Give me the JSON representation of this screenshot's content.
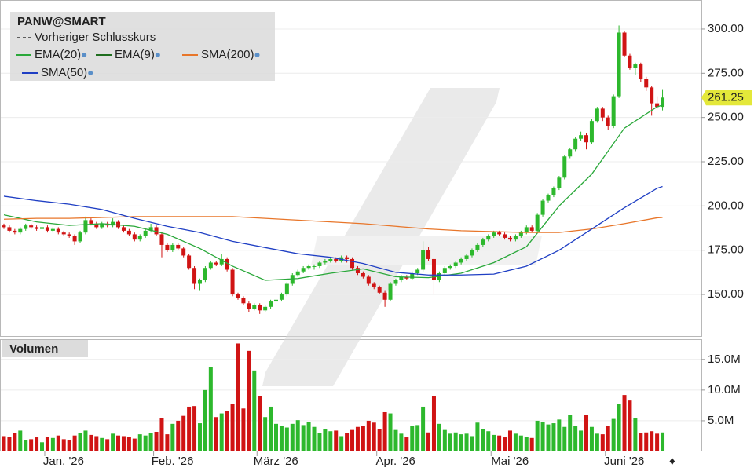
{
  "chart_data": {
    "type": "candlestick",
    "title": "PANW@SMART",
    "previous_close_label": "Vorheriger Schlusskurs",
    "up_color": "#2db82d",
    "down_color": "#d01414",
    "categories": [
      null,
      null,
      null,
      null,
      null,
      null,
      null,
      null,
      "Jan. '26",
      null,
      null,
      null,
      null,
      null,
      null,
      null,
      null,
      null,
      null,
      null,
      null,
      null,
      null,
      null,
      null,
      null,
      null,
      null,
      "Feb. '26",
      null,
      null,
      null,
      null,
      null,
      null,
      null,
      null,
      null,
      null,
      null,
      null,
      null,
      null,
      null,
      null,
      null,
      null,
      "März '26",
      null,
      null,
      null,
      null,
      null,
      null,
      null,
      null,
      null,
      null,
      null,
      null,
      null,
      null,
      null,
      null,
      null,
      null,
      null,
      null,
      null,
      "Apr. '26",
      null,
      null,
      null,
      null,
      null,
      null,
      null,
      null,
      null,
      null,
      null,
      null,
      null,
      null,
      null,
      null,
      null,
      null,
      null,
      null,
      "Mai '26",
      null,
      null,
      null,
      null,
      null,
      null,
      null,
      null,
      null,
      null,
      null,
      null,
      null,
      null,
      null,
      null,
      null,
      null,
      null,
      null,
      "Juni '26",
      null,
      null,
      null,
      null,
      null,
      null,
      null,
      null,
      null,
      null
    ],
    "ohlc": [
      [
        189,
        190,
        187,
        188
      ],
      [
        188,
        189,
        185,
        186
      ],
      [
        186,
        187,
        184,
        185
      ],
      [
        185,
        188,
        184,
        187
      ],
      [
        187,
        190,
        186,
        189
      ],
      [
        189,
        190,
        187,
        188
      ],
      [
        188,
        189,
        186,
        187
      ],
      [
        187,
        189,
        186,
        188
      ],
      [
        188,
        189,
        185,
        186
      ],
      [
        186,
        188,
        185,
        187
      ],
      [
        187,
        188,
        184,
        185
      ],
      [
        185,
        186,
        183,
        184
      ],
      [
        184,
        185,
        182,
        183
      ],
      [
        183,
        184,
        178,
        180
      ],
      [
        180,
        186,
        179,
        185
      ],
      [
        185,
        194,
        184,
        192
      ],
      [
        192,
        193,
        189,
        190
      ],
      [
        190,
        191,
        187,
        188
      ],
      [
        188,
        191,
        187,
        190
      ],
      [
        190,
        191,
        188,
        189
      ],
      [
        189,
        193,
        188,
        191
      ],
      [
        191,
        192,
        187,
        188
      ],
      [
        188,
        189,
        185,
        186
      ],
      [
        186,
        187,
        183,
        184
      ],
      [
        184,
        185,
        180,
        181
      ],
      [
        181,
        184,
        180,
        183
      ],
      [
        183,
        187,
        182,
        186
      ],
      [
        186,
        190,
        185,
        188
      ],
      [
        188,
        189,
        183,
        184
      ],
      [
        184,
        185,
        171,
        178
      ],
      [
        178,
        179,
        174,
        175
      ],
      [
        175,
        179,
        174,
        178
      ],
      [
        178,
        179,
        175,
        176
      ],
      [
        176,
        177,
        171,
        172
      ],
      [
        172,
        173,
        164,
        165
      ],
      [
        165,
        166,
        153,
        156
      ],
      [
        156,
        159,
        152,
        158
      ],
      [
        158,
        166,
        157,
        165
      ],
      [
        165,
        169,
        164,
        168
      ],
      [
        168,
        169,
        166,
        167
      ],
      [
        167,
        173,
        166,
        170
      ],
      [
        170,
        171,
        163,
        164
      ],
      [
        164,
        165,
        149,
        150
      ],
      [
        150,
        151,
        147,
        148
      ],
      [
        148,
        149,
        144,
        145
      ],
      [
        145,
        146,
        140,
        142
      ],
      [
        142,
        145,
        141,
        144
      ],
      [
        144,
        145,
        139,
        141
      ],
      [
        141,
        144,
        140,
        143
      ],
      [
        143,
        147,
        142,
        146
      ],
      [
        146,
        148,
        145,
        147
      ],
      [
        147,
        151,
        146,
        150
      ],
      [
        150,
        157,
        149,
        156
      ],
      [
        156,
        162,
        155,
        161
      ],
      [
        161,
        164,
        160,
        163
      ],
      [
        163,
        166,
        162,
        165
      ],
      [
        165,
        167,
        164,
        166
      ],
      [
        166,
        167,
        164,
        166
      ],
      [
        166,
        169,
        165,
        168
      ],
      [
        168,
        170,
        167,
        169
      ],
      [
        169,
        171,
        168,
        170
      ],
      [
        170,
        171,
        168,
        169
      ],
      [
        169,
        172,
        168,
        171
      ],
      [
        171,
        172,
        168,
        170
      ],
      [
        170,
        171,
        164,
        165
      ],
      [
        165,
        166,
        161,
        162
      ],
      [
        162,
        163,
        159,
        160
      ],
      [
        160,
        161,
        155,
        156
      ],
      [
        156,
        157,
        153,
        154
      ],
      [
        154,
        155,
        150,
        151
      ],
      [
        151,
        152,
        143,
        147
      ],
      [
        147,
        157,
        146,
        156
      ],
      [
        156,
        159,
        155,
        158
      ],
      [
        158,
        161,
        157,
        160
      ],
      [
        160,
        161,
        158,
        159
      ],
      [
        159,
        163,
        158,
        162
      ],
      [
        162,
        165,
        161,
        164
      ],
      [
        164,
        180,
        163,
        175
      ],
      [
        175,
        177,
        169,
        170
      ],
      [
        170,
        171,
        150,
        158
      ],
      [
        158,
        163,
        157,
        162
      ],
      [
        162,
        166,
        161,
        165
      ],
      [
        165,
        167,
        164,
        166
      ],
      [
        166,
        169,
        165,
        168
      ],
      [
        168,
        171,
        167,
        170
      ],
      [
        170,
        173,
        169,
        172
      ],
      [
        172,
        176,
        171,
        175
      ],
      [
        175,
        179,
        174,
        178
      ],
      [
        178,
        182,
        177,
        181
      ],
      [
        181,
        184,
        180,
        183
      ],
      [
        183,
        186,
        182,
        185
      ],
      [
        185,
        186,
        183,
        184
      ],
      [
        184,
        185,
        181,
        182
      ],
      [
        182,
        183,
        180,
        181
      ],
      [
        181,
        184,
        180,
        183
      ],
      [
        183,
        186,
        182,
        185
      ],
      [
        185,
        189,
        184,
        188
      ],
      [
        188,
        189,
        185,
        186
      ],
      [
        186,
        196,
        185,
        195
      ],
      [
        195,
        204,
        194,
        203
      ],
      [
        203,
        207,
        202,
        206
      ],
      [
        206,
        211,
        205,
        210
      ],
      [
        210,
        217,
        209,
        216
      ],
      [
        216,
        229,
        215,
        228
      ],
      [
        228,
        233,
        227,
        232
      ],
      [
        232,
        239,
        231,
        238
      ],
      [
        238,
        242,
        237,
        240
      ],
      [
        240,
        241,
        232,
        236
      ],
      [
        236,
        249,
        235,
        248
      ],
      [
        248,
        256,
        247,
        255
      ],
      [
        255,
        256,
        248,
        250
      ],
      [
        250,
        251,
        243,
        245
      ],
      [
        245,
        263,
        244,
        262
      ],
      [
        262,
        302,
        261,
        298
      ],
      [
        298,
        299,
        284,
        285
      ],
      [
        285,
        286,
        277,
        278
      ],
      [
        278,
        281,
        274,
        280
      ],
      [
        280,
        281,
        270,
        272
      ],
      [
        272,
        273,
        265,
        267
      ],
      [
        267,
        268,
        251,
        258
      ],
      [
        258,
        262,
        255,
        256
      ],
      [
        256,
        266,
        254,
        261.25
      ]
    ],
    "ylim": [
      126.5,
      316.4
    ],
    "yticks": [
      {
        "value": 150,
        "label": "150.00"
      },
      {
        "value": 175,
        "label": "175.00"
      },
      {
        "value": 200,
        "label": "200.00"
      },
      {
        "value": 225,
        "label": "225.00"
      },
      {
        "value": 250,
        "label": "250.00"
      },
      {
        "value": 275,
        "label": "275.00"
      },
      {
        "value": 300,
        "label": "300.00"
      }
    ],
    "lines": [
      {
        "name": "EMA(20)",
        "color": "#2aa83a",
        "x": [
          0,
          6,
          12,
          18,
          24,
          30,
          36,
          42,
          48,
          54,
          60,
          66,
          72,
          78,
          84,
          90,
          96,
          102,
          108,
          114,
          120,
          121
        ],
        "values": [
          195,
          191,
          189,
          190,
          188.5,
          184,
          176,
          166,
          158,
          159,
          162,
          164.5,
          160,
          159.5,
          162,
          168,
          177,
          200,
          218,
          244,
          256,
          257
        ]
      },
      {
        "name": "EMA(9)",
        "color": "#1f6e1f"
      },
      {
        "name": "SMA(200)",
        "color": "#e8762a",
        "x": [
          0,
          6,
          12,
          18,
          24,
          30,
          36,
          42,
          48,
          54,
          60,
          66,
          72,
          78,
          84,
          90,
          96,
          102,
          108,
          114,
          120,
          121
        ],
        "values": [
          192.5,
          193,
          193,
          193.5,
          194,
          194,
          194,
          194,
          193,
          192,
          191,
          190,
          188.5,
          187,
          186,
          185.5,
          185,
          185,
          187,
          190,
          193.3,
          193.5
        ]
      },
      {
        "name": "SMA(50)",
        "color": "#1f3fc4",
        "x": [
          0,
          6,
          12,
          18,
          24,
          30,
          36,
          42,
          48,
          54,
          60,
          66,
          72,
          78,
          84,
          90,
          96,
          102,
          108,
          114,
          120,
          121
        ],
        "values": [
          205.5,
          203,
          201,
          198,
          193,
          188.5,
          185,
          180,
          176.5,
          173,
          171,
          167.5,
          162.5,
          161,
          161,
          161.5,
          166,
          175,
          187,
          199,
          210,
          211
        ]
      }
    ],
    "volume": {
      "title": "Volumen",
      "values": [
        2.5,
        2.4,
        3.0,
        3.4,
        1.8,
        2.0,
        2.3,
        1.5,
        2.4,
        2.2,
        2.6,
        2.0,
        1.9,
        2.6,
        3.0,
        3.4,
        2.7,
        2.5,
        2.2,
        2.0,
        2.9,
        2.6,
        2.5,
        2.4,
        2.1,
        2.8,
        2.6,
        3.0,
        3.2,
        5.4,
        2.8,
        4.5,
        5.0,
        5.8,
        7.3,
        7.4,
        4.6,
        10.0,
        13.7,
        5.6,
        6.2,
        6.6,
        7.7,
        17.6,
        7.0,
        16.4,
        13.2,
        9.0,
        5.6,
        7.3,
        4.5,
        4.2,
        3.9,
        4.5,
        5.1,
        4.3,
        4.8,
        4.0,
        3.0,
        3.6,
        3.3,
        3.4,
        2.5,
        3.0,
        3.5,
        4.0,
        4.1,
        5.0,
        4.7,
        3.6,
        6.4,
        6.2,
        3.5,
        2.9,
        2.3,
        4.2,
        4.3,
        7.3,
        3.1,
        9.0,
        4.5,
        3.5,
        2.9,
        3.1,
        2.8,
        2.9,
        2.5,
        4.7,
        3.6,
        3.3,
        2.7,
        2.6,
        2.3,
        3.4,
        2.9,
        2.6,
        2.4,
        2.2,
        5.0,
        4.8,
        4.4,
        4.6,
        5.2,
        4.0,
        5.9,
        4.2,
        3.4,
        5.9,
        4.0,
        2.9,
        2.8,
        4.2,
        5.3,
        7.7,
        9.2,
        8.3,
        5.4,
        3.0,
        3.1,
        3.3,
        2.9,
        3.1
      ],
      "ylim": [
        0,
        18.3
      ],
      "yticks": [
        {
          "value": 5,
          "label": "5.0M"
        },
        {
          "value": 10,
          "label": "10.0M"
        },
        {
          "value": 15,
          "label": "15.0M"
        }
      ]
    }
  }
}
